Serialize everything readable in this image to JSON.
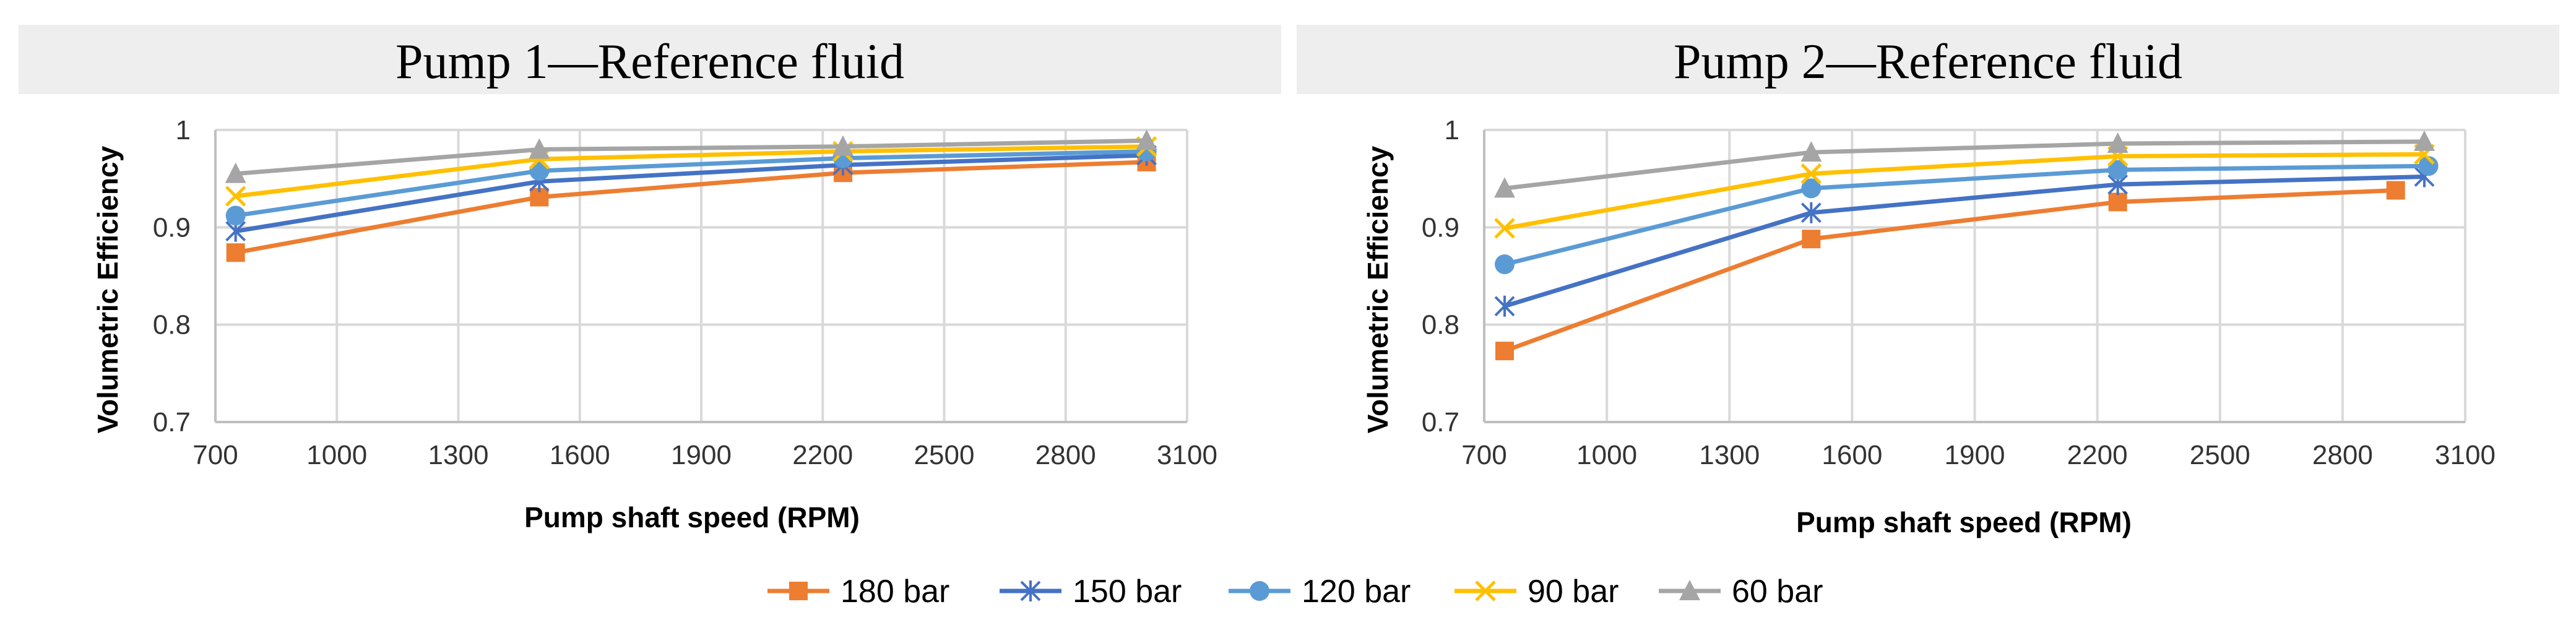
{
  "figure": {
    "legend": [
      {
        "name": "180 bar",
        "color": "#ED7D31",
        "marker": "square"
      },
      {
        "name": "150 bar",
        "color": "#4472C4",
        "marker": "star"
      },
      {
        "name": "120 bar",
        "color": "#5B9BD5",
        "marker": "circle"
      },
      {
        "name": "90 bar",
        "color": "#FFC000",
        "marker": "x"
      },
      {
        "name": "60 bar",
        "color": "#A5A5A5",
        "marker": "triangle"
      }
    ]
  },
  "chart_data": [
    {
      "type": "line",
      "title": "Pump 1—Reference fluid",
      "xlabel": "Pump shaft speed (RPM)",
      "ylabel": "Volumetric Efficiency",
      "xlim": [
        700,
        3100
      ],
      "ylim": [
        0.7,
        1
      ],
      "xticks": [
        700,
        1000,
        1300,
        1600,
        1900,
        2200,
        2500,
        2800,
        3100
      ],
      "yticks": [
        0.7,
        0.8,
        0.9,
        1
      ],
      "ytick_labels": [
        "0.7",
        "0.8",
        "0.9",
        "1"
      ],
      "series": [
        {
          "name": "180 bar",
          "x": [
            750,
            1500,
            2250,
            3000
          ],
          "values": [
            0.874,
            0.931,
            0.956,
            0.967
          ]
        },
        {
          "name": "150 bar",
          "x": [
            750,
            1500,
            2250,
            3000
          ],
          "values": [
            0.896,
            0.947,
            0.964,
            0.974
          ]
        },
        {
          "name": "120 bar",
          "x": [
            750,
            1500,
            2250,
            3000
          ],
          "values": [
            0.912,
            0.958,
            0.971,
            0.978
          ]
        },
        {
          "name": "90 bar",
          "x": [
            750,
            1500,
            2250,
            3000
          ],
          "values": [
            0.932,
            0.97,
            0.978,
            0.983
          ]
        },
        {
          "name": "60 bar",
          "x": [
            750,
            1500,
            2250,
            3000
          ],
          "values": [
            0.955,
            0.98,
            0.983,
            0.989
          ]
        }
      ]
    },
    {
      "type": "line",
      "title": "Pump 2—Reference fluid",
      "xlabel": "Pump shaft speed (RPM)",
      "ylabel": "Volumetric Efficiency",
      "xlim": [
        700,
        3100
      ],
      "ylim": [
        0.7,
        1
      ],
      "xticks": [
        700,
        1000,
        1300,
        1600,
        1900,
        2200,
        2500,
        2800,
        3100
      ],
      "yticks": [
        0.7,
        0.8,
        0.9,
        1
      ],
      "ytick_labels": [
        "0.7",
        "0.8",
        "0.9",
        "1"
      ],
      "series": [
        {
          "name": "180 bar",
          "x": [
            750,
            1500,
            2250,
            2930
          ],
          "values": [
            0.773,
            0.888,
            0.926,
            0.938
          ]
        },
        {
          "name": "150 bar",
          "x": [
            750,
            1500,
            2250,
            3000
          ],
          "values": [
            0.819,
            0.915,
            0.944,
            0.952
          ]
        },
        {
          "name": "120 bar",
          "x": [
            750,
            1500,
            2250,
            3010
          ],
          "values": [
            0.862,
            0.94,
            0.959,
            0.963
          ]
        },
        {
          "name": "90 bar",
          "x": [
            750,
            1500,
            2250,
            3000
          ],
          "values": [
            0.899,
            0.955,
            0.973,
            0.975
          ]
        },
        {
          "name": "60 bar",
          "x": [
            750,
            1500,
            2250,
            3000
          ],
          "values": [
            0.94,
            0.977,
            0.986,
            0.988
          ]
        }
      ]
    }
  ]
}
